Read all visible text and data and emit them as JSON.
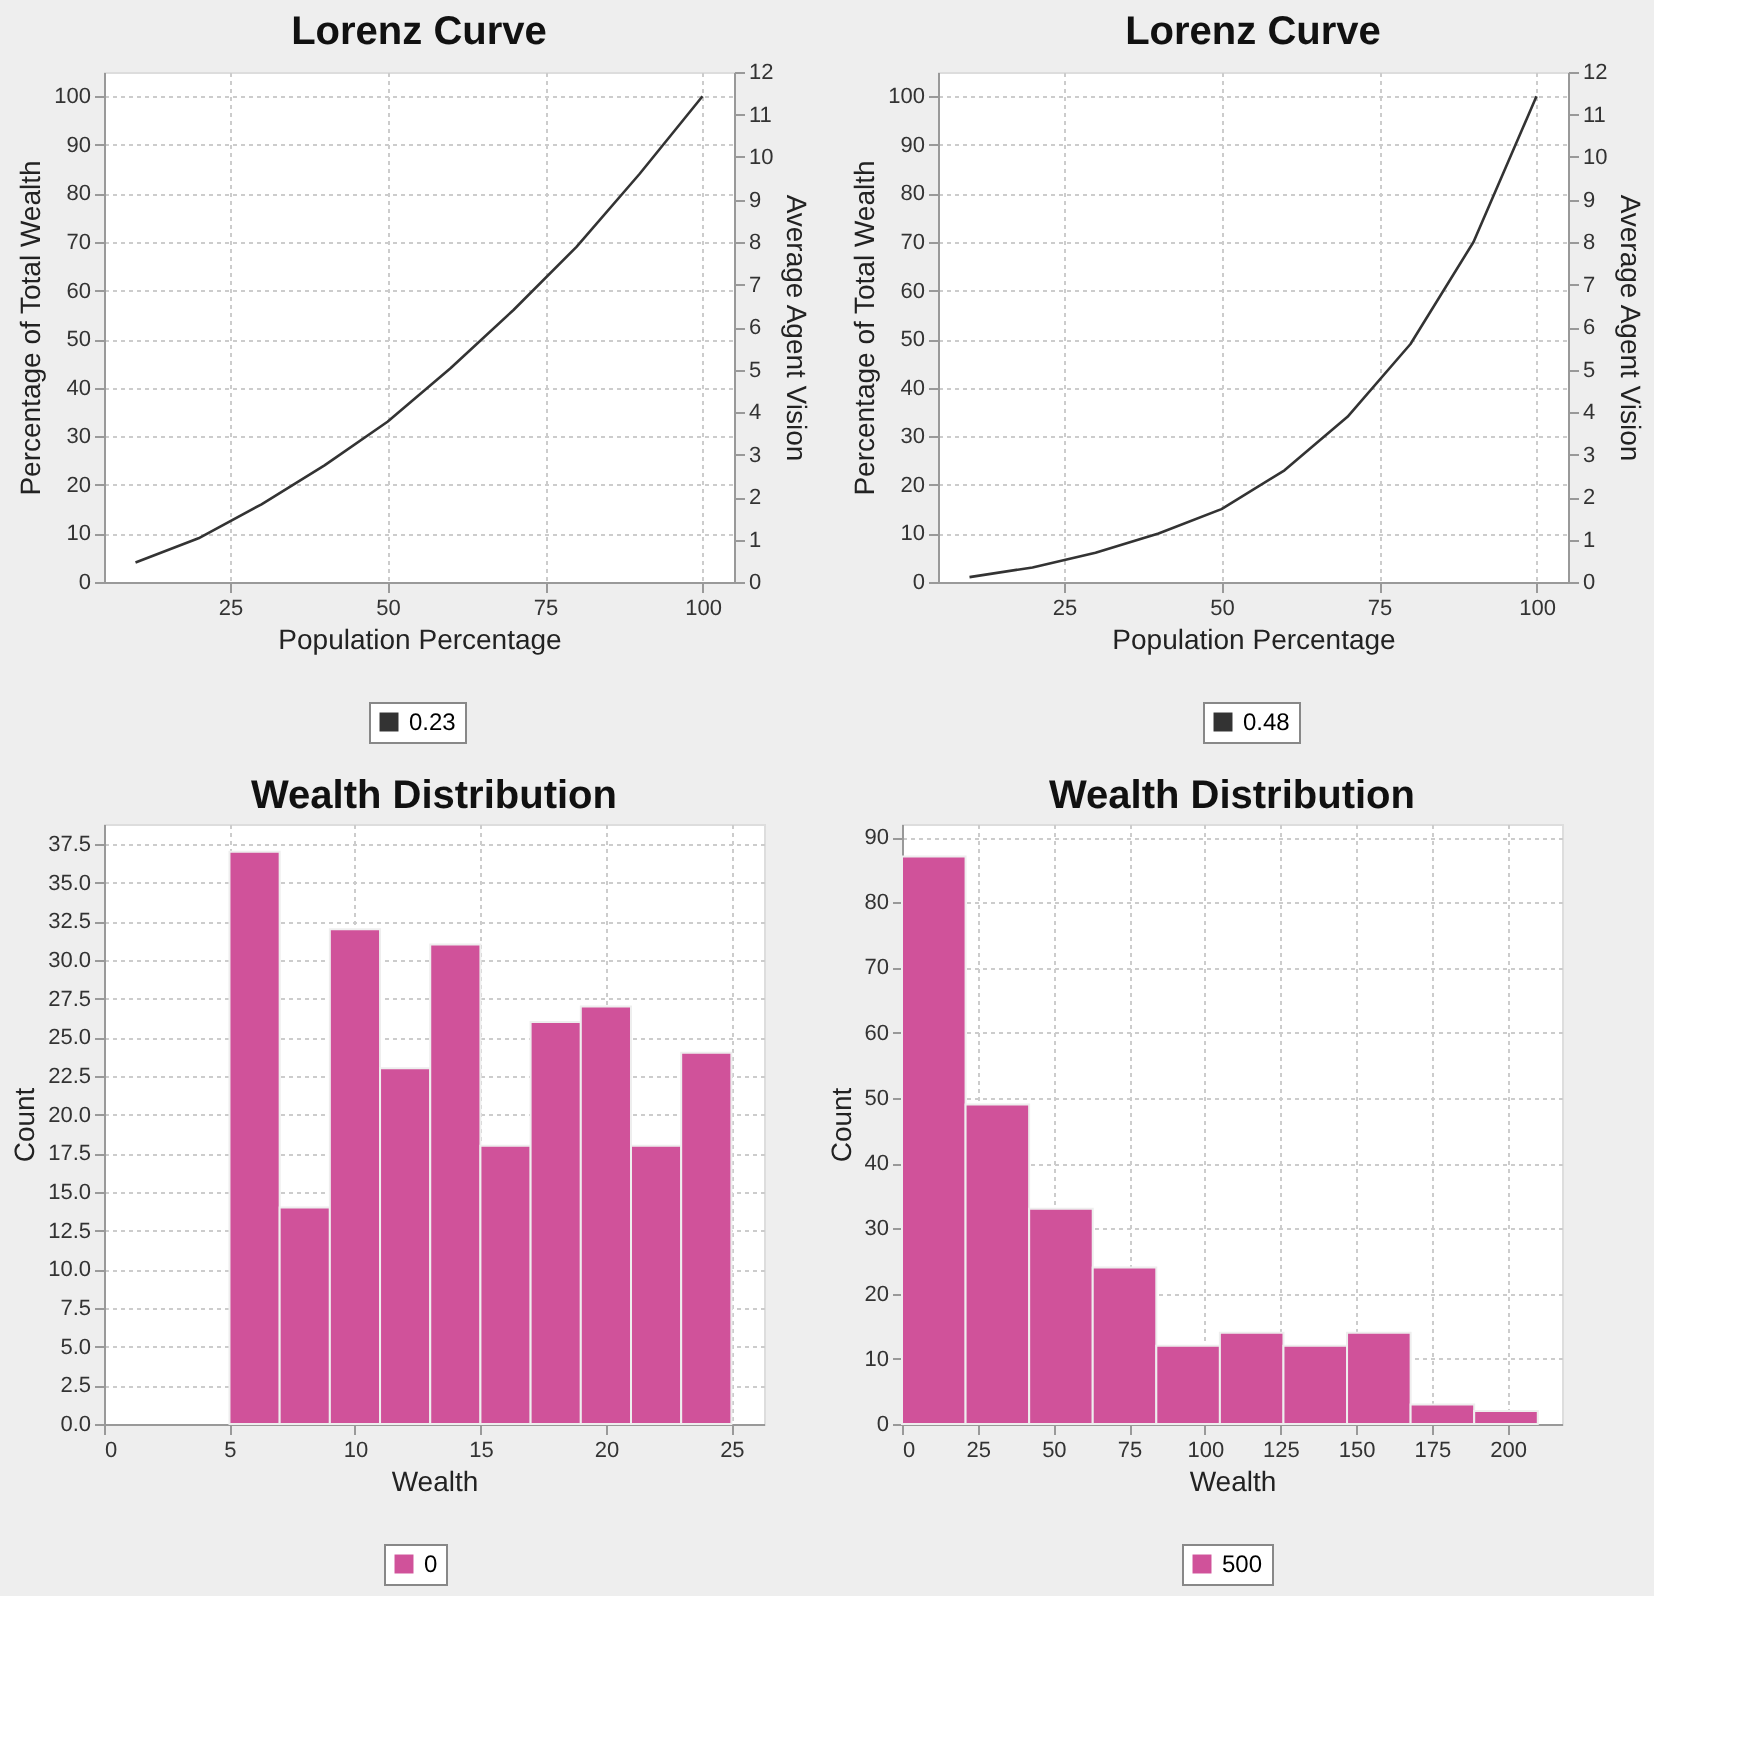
{
  "chart_data": [
    {
      "type": "line",
      "title": "Lorenz Curve",
      "xlabel": "Population Percentage",
      "ylabel": "Percentage of Total Wealth",
      "y2label": "Average Agent Vision",
      "x": [
        10,
        20,
        30,
        40,
        50,
        60,
        70,
        80,
        90,
        100
      ],
      "series": [
        {
          "name": "0.23",
          "color": "#333333",
          "values": [
            4,
            9,
            16,
            24,
            33,
            44,
            56,
            69,
            84,
            100
          ]
        }
      ],
      "xlim": [
        5,
        105
      ],
      "xticks": [
        25,
        50,
        75,
        100
      ],
      "ylim": [
        0,
        105
      ],
      "yticks": [
        0,
        10,
        20,
        30,
        40,
        50,
        60,
        70,
        80,
        90,
        100
      ],
      "y2lim": [
        0,
        12
      ],
      "y2ticks": [
        0,
        1,
        2,
        3,
        4,
        5,
        6,
        7,
        8,
        9,
        10,
        11,
        12
      ],
      "grid": true,
      "legend": "bottom",
      "marker": "none",
      "line_style": "solid"
    },
    {
      "type": "line",
      "title": "Lorenz Curve",
      "xlabel": "Population Percentage",
      "ylabel": "Percentage of Total Wealth",
      "y2label": "Average Agent Vision",
      "x": [
        10,
        20,
        30,
        40,
        50,
        60,
        70,
        80,
        90,
        100
      ],
      "series": [
        {
          "name": "0.48",
          "color": "#333333",
          "values": [
            1,
            3,
            6,
            10,
            15,
            23,
            34,
            49,
            70,
            100
          ]
        }
      ],
      "xlim": [
        5,
        105
      ],
      "xticks": [
        25,
        50,
        75,
        100
      ],
      "ylim": [
        0,
        105
      ],
      "yticks": [
        0,
        10,
        20,
        30,
        40,
        50,
        60,
        70,
        80,
        90,
        100
      ],
      "y2lim": [
        0,
        12
      ],
      "y2ticks": [
        0,
        1,
        2,
        3,
        4,
        5,
        6,
        7,
        8,
        9,
        10,
        11,
        12
      ],
      "grid": true,
      "legend": "bottom",
      "marker": "none",
      "line_style": "solid"
    },
    {
      "type": "histogram",
      "title": "Wealth Distribution",
      "xlabel": "Wealth",
      "ylabel": "Count",
      "bins": [
        5,
        7,
        9,
        11,
        13,
        15,
        17,
        19,
        21,
        23,
        25
      ],
      "series": [
        {
          "name": "0",
          "color": "#d0529a",
          "values": [
            37,
            14,
            32,
            23,
            31,
            18,
            26,
            27,
            18,
            24
          ]
        }
      ],
      "xlim": [
        0,
        26.3
      ],
      "xticks": [
        0,
        5,
        10,
        15,
        20,
        25
      ],
      "ylim": [
        0,
        38.8
      ],
      "yticks": [
        {
          "value": 0,
          "label": "0.0"
        },
        {
          "value": 2.5,
          "label": "2.5"
        },
        {
          "value": 5,
          "label": "5.0"
        },
        {
          "value": 7.5,
          "label": "7.5"
        },
        {
          "value": 10,
          "label": "10.0"
        },
        {
          "value": 12.5,
          "label": "12.5"
        },
        {
          "value": 15,
          "label": "15.0"
        },
        {
          "value": 17.5,
          "label": "17.5"
        },
        {
          "value": 20,
          "label": "20.0"
        },
        {
          "value": 22.5,
          "label": "22.5"
        },
        {
          "value": 25,
          "label": "25.0"
        },
        {
          "value": 27.5,
          "label": "27.5"
        },
        {
          "value": 30,
          "label": "30.0"
        },
        {
          "value": 32.5,
          "label": "32.5"
        },
        {
          "value": 35,
          "label": "35.0"
        },
        {
          "value": 37.5,
          "label": "37.5"
        }
      ],
      "grid": true,
      "legend": "bottom"
    },
    {
      "type": "histogram",
      "title": "Wealth Distribution",
      "xlabel": "Wealth",
      "ylabel": "Count",
      "bins": [
        0,
        21,
        42,
        63,
        84,
        105,
        126,
        147,
        168,
        189,
        210
      ],
      "series": [
        {
          "name": "500",
          "color": "#d0529a",
          "values": [
            87,
            49,
            33,
            24,
            12,
            14,
            12,
            14,
            3,
            2
          ]
        }
      ],
      "xlim": [
        0,
        218
      ],
      "xticks": [
        0,
        25,
        50,
        75,
        100,
        125,
        150,
        175,
        200
      ],
      "ylim": [
        0,
        92
      ],
      "yticks": [
        0,
        10,
        20,
        30,
        40,
        50,
        60,
        70,
        80,
        90
      ],
      "grid": true,
      "legend": "bottom"
    }
  ]
}
